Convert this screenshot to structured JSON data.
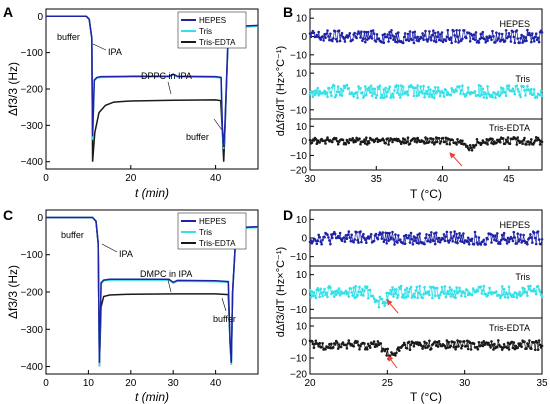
{
  "panels": [
    {
      "id": "A",
      "label": "A",
      "xlabel": "t (min)",
      "ylabel": "Δf3/3 (Hz)",
      "xlim": [
        0,
        50
      ],
      "ylim": [
        -420,
        20
      ],
      "xticks": [
        0,
        20,
        40
      ],
      "yticks": [
        0,
        -100,
        -200,
        -300,
        -400
      ],
      "legend": [
        "HEPES",
        "Tris",
        "Tris-EDTA"
      ],
      "annotations": [
        "buffer",
        "IPA",
        "DPPC in IPA",
        "buffer"
      ]
    },
    {
      "id": "B",
      "label": "B",
      "xlabel": "T (°C)",
      "ylabel": "dΔf3/dT (Hz×°C⁻¹)",
      "xlim": [
        30,
        47.5
      ],
      "xticks": [
        30,
        35,
        40,
        45
      ],
      "subplots": [
        {
          "name": "HEPES",
          "ylim": [
            -15,
            15
          ],
          "yticks": [
            10,
            0,
            -10
          ]
        },
        {
          "name": "Tris",
          "ylim": [
            -15,
            15
          ],
          "yticks": [
            10,
            0,
            -10
          ]
        },
        {
          "name": "Tris-EDTA",
          "ylim": [
            -20,
            15
          ],
          "yticks": [
            10,
            0,
            -10,
            -20
          ]
        }
      ]
    },
    {
      "id": "C",
      "label": "C",
      "xlabel": "t (min)",
      "ylabel": "Δf3/3 (Hz)",
      "xlim": [
        0,
        50
      ],
      "ylim": [
        -420,
        20
      ],
      "xticks": [
        0,
        10,
        20,
        30,
        40
      ],
      "yticks": [
        0,
        -100,
        -200,
        -300,
        -400
      ],
      "legend": [
        "HEPES",
        "Tris",
        "Tris-EDTA"
      ],
      "annotations": [
        "buffer",
        "IPA",
        "DMPC in IPA",
        "buffer"
      ]
    },
    {
      "id": "D",
      "label": "D",
      "xlabel": "T (°C)",
      "ylabel": "dΔf3/dT (Hz×°C⁻¹)",
      "xlim": [
        20,
        35
      ],
      "xticks": [
        20,
        25,
        30,
        35
      ],
      "subplots": [
        {
          "name": "HEPES",
          "ylim": [
            -15,
            15
          ],
          "yticks": [
            10,
            0,
            -10
          ]
        },
        {
          "name": "Tris",
          "ylim": [
            -15,
            15
          ],
          "yticks": [
            10,
            0,
            -10
          ]
        },
        {
          "name": "Tris-EDTA",
          "ylim": [
            -20,
            15
          ],
          "yticks": [
            10,
            0,
            -10,
            -20
          ]
        }
      ]
    }
  ],
  "colors": {
    "HEPES": "#1f22a6",
    "Tris": "#35e0e8",
    "TrisEDTA": "#1a1a1a",
    "arrow": "#e8403a"
  },
  "chart_data": [
    {
      "type": "line",
      "panel": "A",
      "xlabel": "t (min)",
      "ylabel": "Δf3/3 (Hz)",
      "xlim": [
        0,
        50
      ],
      "ylim": [
        -420,
        20
      ],
      "series": [
        {
          "name": "HEPES",
          "x": [
            0,
            9.5,
            10.2,
            10.8,
            11.0,
            11.4,
            12,
            13,
            20,
            29,
            30,
            31,
            40,
            41.3,
            41.6,
            41.9,
            42.2,
            43,
            44,
            50
          ],
          "y": [
            0,
            0,
            -8,
            -60,
            -330,
            -175,
            -168,
            -166,
            -165,
            -165,
            -159,
            -165,
            -166,
            -168,
            -310,
            -360,
            -300,
            -40,
            -28,
            -25
          ]
        },
        {
          "name": "Tris",
          "x": [
            0,
            9.5,
            10.2,
            10.8,
            11.0,
            11.4,
            12,
            13,
            20,
            29,
            30,
            31,
            40,
            41.3,
            41.6,
            41.9,
            42.2,
            43,
            44,
            50
          ],
          "y": [
            0,
            0,
            -8,
            -60,
            -340,
            -178,
            -170,
            -168,
            -167,
            -167,
            -161,
            -167,
            -168,
            -170,
            -320,
            -365,
            -310,
            -42,
            -30,
            -27
          ]
        },
        {
          "name": "Tris-EDTA",
          "x": [
            0,
            9.5,
            10.2,
            10.8,
            11.0,
            11.5,
            12.5,
            14,
            16,
            20,
            30,
            40,
            41.2,
            41.6,
            41.9,
            42.2,
            43,
            44,
            50
          ],
          "y": [
            0,
            0,
            -8,
            -60,
            -400,
            -320,
            -265,
            -245,
            -236,
            -233,
            -231,
            -230,
            -232,
            -320,
            -400,
            -320,
            -45,
            -30,
            -27
          ]
        }
      ]
    },
    {
      "type": "scatter",
      "panel": "B",
      "xlabel": "T (°C)",
      "ylabel": "dΔf3/dT (Hz×°C⁻¹)",
      "xlim": [
        30,
        47.5
      ],
      "series": [
        {
          "name": "HEPES",
          "mean": 0,
          "noise": 3.5
        },
        {
          "name": "Tris",
          "mean": 0,
          "noise": 3.5
        },
        {
          "name": "Tris-EDTA",
          "mean": 0,
          "noise": 2.5,
          "dip_at": 42,
          "dip_depth": -5
        }
      ]
    },
    {
      "type": "line",
      "panel": "C",
      "xlabel": "t (min)",
      "ylabel": "Δf3/3 (Hz)",
      "xlim": [
        0,
        50
      ],
      "ylim": [
        -420,
        20
      ],
      "series": [
        {
          "name": "HEPES",
          "x": [
            0,
            11,
            11.8,
            12.3,
            12.6,
            13.0,
            13.6,
            15,
            20,
            29,
            30,
            31,
            40,
            43,
            43.4,
            43.7,
            44.0,
            44.8,
            46,
            50
          ],
          "y": [
            0,
            0,
            -10,
            -70,
            -390,
            -175,
            -168,
            -166,
            -166,
            -166,
            -174,
            -169,
            -170,
            -172,
            -330,
            -390,
            -200,
            -40,
            -27,
            -25
          ]
        },
        {
          "name": "Tris",
          "x": [
            0,
            11,
            11.8,
            12.3,
            12.6,
            13.0,
            13.6,
            15,
            20,
            29,
            30,
            31,
            40,
            43,
            43.4,
            43.7,
            44.0,
            44.8,
            46,
            50
          ],
          "y": [
            0,
            0,
            -10,
            -70,
            -400,
            -178,
            -170,
            -168,
            -168,
            -168,
            -176,
            -171,
            -172,
            -174,
            -340,
            -395,
            -210,
            -42,
            -29,
            -27
          ]
        },
        {
          "name": "Tris-EDTA",
          "x": [
            0,
            11,
            11.8,
            12.3,
            12.6,
            13.0,
            13.6,
            15,
            20,
            30,
            40,
            43,
            43.4,
            43.7,
            44.0,
            44.8,
            46,
            50
          ],
          "y": [
            0,
            0,
            -10,
            -70,
            -400,
            -240,
            -212,
            -208,
            -206,
            -205,
            -205,
            -207,
            -330,
            -395,
            -200,
            -40,
            -27,
            -25
          ]
        }
      ]
    },
    {
      "type": "scatter",
      "panel": "D",
      "xlabel": "T (°C)",
      "ylabel": "dΔf3/dT (Hz×°C⁻¹)",
      "xlim": [
        20,
        35
      ],
      "series": [
        {
          "name": "HEPES",
          "mean": 0,
          "noise": 3.5
        },
        {
          "name": "Tris",
          "mean": 0,
          "noise": 3.5,
          "dip_at": 24.6,
          "dip_depth": -6
        },
        {
          "name": "Tris-EDTA",
          "mean": -2,
          "noise": 3,
          "dip_at": 25.3,
          "dip_depth": -7
        }
      ]
    }
  ]
}
